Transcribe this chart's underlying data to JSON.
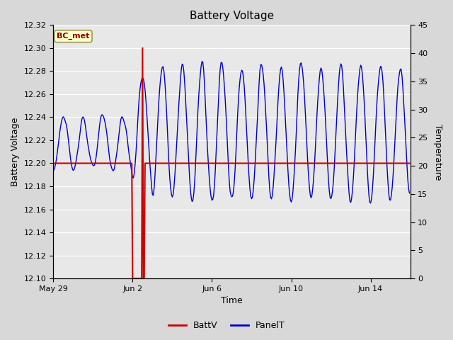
{
  "title": "Battery Voltage",
  "xlabel": "Time",
  "ylabel_left": "Battery Voltage",
  "ylabel_right": "Temperature",
  "ylim_left": [
    12.1,
    12.32
  ],
  "ylim_right": [
    0,
    45
  ],
  "yticks_left": [
    12.1,
    12.12,
    12.14,
    12.16,
    12.18,
    12.2,
    12.22,
    12.24,
    12.26,
    12.28,
    12.3,
    12.32
  ],
  "yticks_right": [
    0,
    5,
    10,
    15,
    20,
    25,
    30,
    35,
    40,
    45
  ],
  "bg_color": "#d8d8d8",
  "plot_bg_color": "#e8e8e8",
  "batt_color": "#cc0000",
  "panel_color": "#0000cc",
  "legend_label_batt": "BattV",
  "legend_label_panel": "PanelT",
  "box_label": "BC_met",
  "box_facecolor": "#ffffcc",
  "box_edgecolor": "#999955",
  "grid_color": "#ffffff",
  "batt_constant": 12.2,
  "xlim": [
    0,
    18
  ],
  "xtick_positions": [
    0,
    4,
    8,
    12,
    16
  ],
  "xtick_labels": [
    "May 29",
    "Jun 2",
    "Jun 6",
    "Jun 10",
    "Jun 14"
  ],
  "figsize": [
    6.4,
    4.8
  ],
  "dpi": 100
}
